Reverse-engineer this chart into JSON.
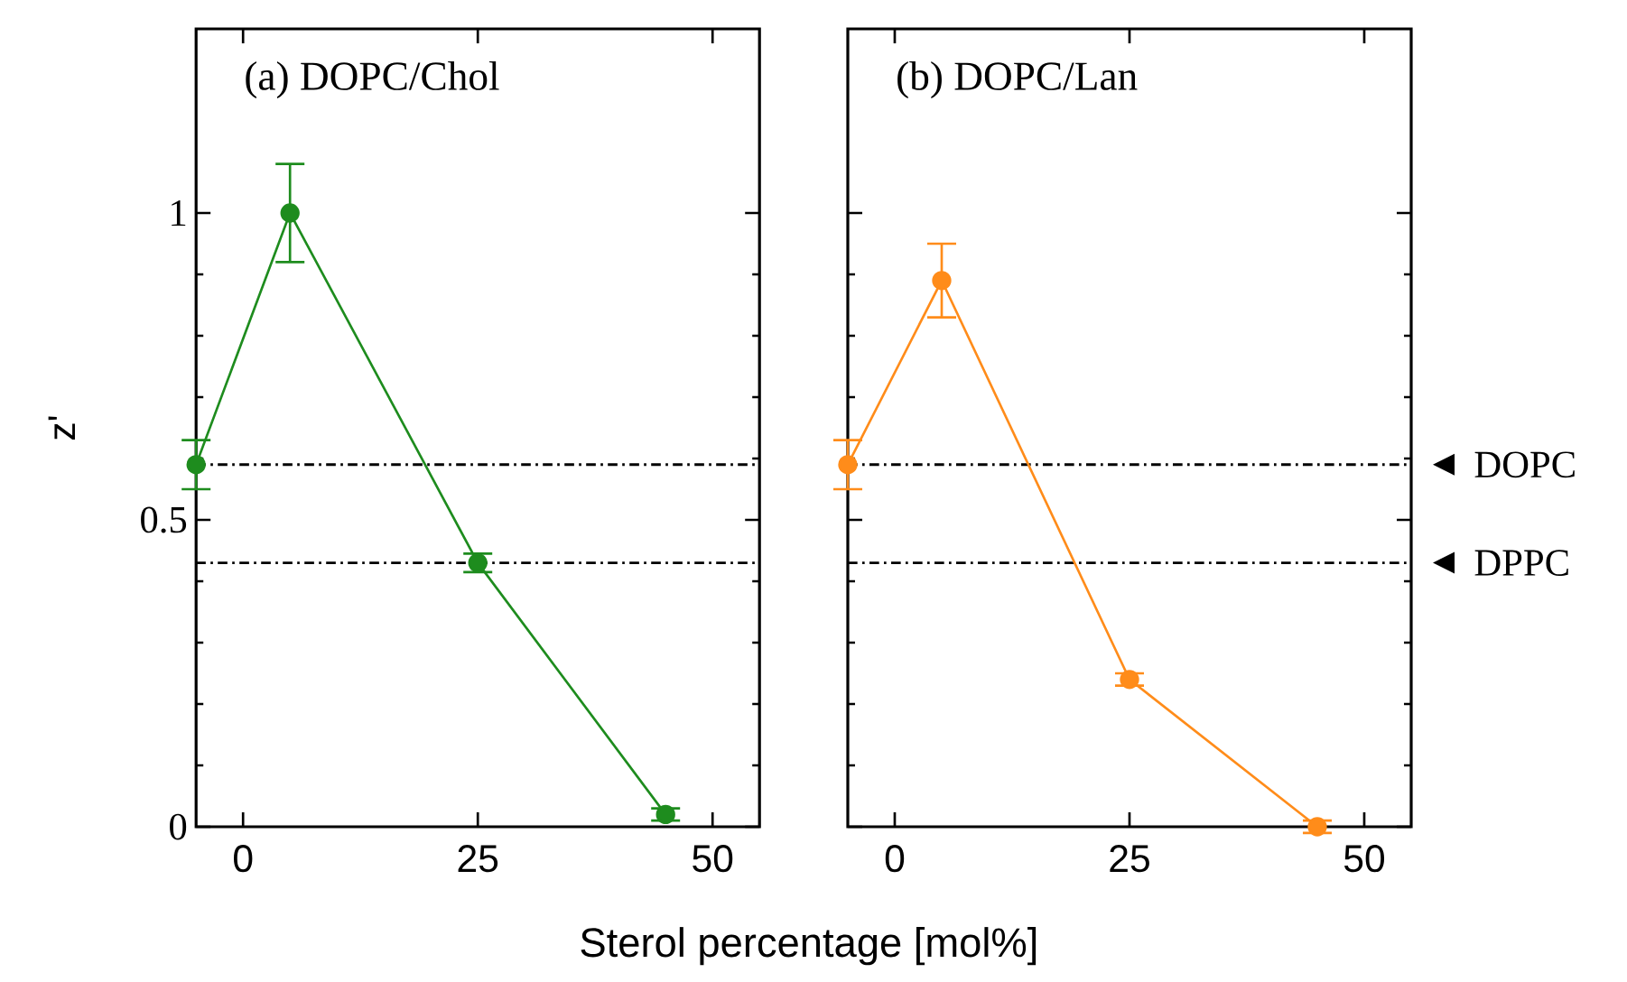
{
  "chart_data": [
    {
      "type": "line",
      "title": "(a) DOPC/Chol",
      "ylabel": "z'",
      "x": [
        -5,
        5,
        25,
        45
      ],
      "series": [
        {
          "color": "#1e8c1e",
          "values": [
            0.59,
            1.0,
            0.43,
            0.02
          ],
          "errors": [
            0.04,
            0.08,
            0.015,
            0.01
          ]
        }
      ],
      "xlim": [
        -5,
        55
      ],
      "ylim": [
        0,
        1.3
      ],
      "xticks": [
        0,
        25,
        50
      ],
      "yticks": [
        0,
        0.5,
        1
      ],
      "marker": "circle",
      "ref_lines": [
        {
          "axis": "y",
          "value": 0.59,
          "line_style": "dashed"
        },
        {
          "axis": "y",
          "value": 0.43,
          "line_style": "dashed"
        }
      ]
    },
    {
      "type": "line",
      "title": "(b) DOPC/Lan",
      "xlabel": "Sterol percentage [mol%]",
      "x": [
        -5,
        5,
        25,
        45
      ],
      "series": [
        {
          "color": "#ff8c1a",
          "values": [
            0.59,
            0.89,
            0.24,
            0.0
          ],
          "errors": [
            0.04,
            0.06,
            0.01,
            0.01
          ]
        }
      ],
      "xlim": [
        -5,
        55
      ],
      "ylim": [
        0,
        1.3
      ],
      "xticks": [
        0,
        25,
        50
      ],
      "yticks": [
        0,
        0.5,
        1
      ],
      "marker": "circle",
      "tick_labels": "x",
      "ref_lines": [
        {
          "axis": "y",
          "value": 0.59,
          "line_style": "dashed",
          "label": "DOPC"
        },
        {
          "axis": "y",
          "value": 0.43,
          "line_style": "dashed",
          "label": "DPPC"
        }
      ]
    }
  ]
}
